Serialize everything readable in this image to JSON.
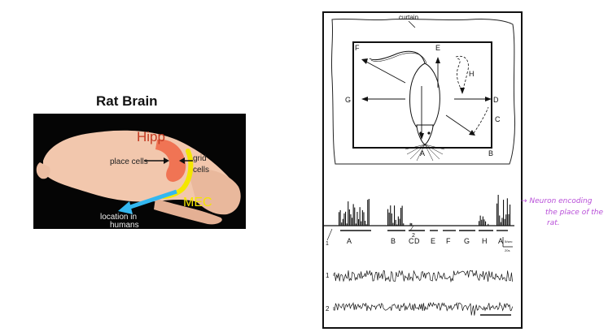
{
  "left_panel": {
    "title": "Rat Brain",
    "labels": {
      "hipp": "Hipp",
      "place_cells": "place cells",
      "grid_cells_line1": "grid",
      "grid_cells_line2": "cells",
      "mec": "MEC",
      "location_line1": "location in",
      "location_line2": "humans"
    },
    "colors": {
      "place_cells_region": "#f06a4a",
      "mec_band": "#f4e600",
      "human_arrow": "#33b7f0",
      "brain_tissue": "#f2c7ad",
      "background": "#050505"
    }
  },
  "figure": {
    "curtain_label": "curtain",
    "arena_labels": {
      "A": "A",
      "B": "B",
      "C": "C",
      "D": "D",
      "E": "E",
      "F": "F",
      "G": "G",
      "H": "H"
    },
    "segment_labels": [
      "A",
      "B",
      "C",
      "D",
      "E",
      "F",
      "G",
      "H",
      "A"
    ],
    "trace_labels": [
      "1",
      "2"
    ],
    "marker_1": "1",
    "marker_2": "2",
    "scale_top": "5/sec",
    "scale_bottom": "20s"
  },
  "annotation": {
    "line1": "→ Neuron encoding",
    "line2": "the place of the",
    "line3": "rat."
  }
}
